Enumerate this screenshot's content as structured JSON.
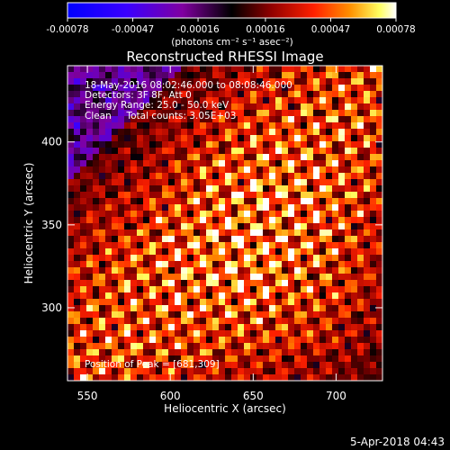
{
  "chart_data": {
    "type": "heatmap",
    "title": "Reconstructed RHESSI Image",
    "xlabel": "Heliocentric X (arcsec)",
    "ylabel": "Heliocentric Y (arcsec)",
    "xlim": [
      538,
      728
    ],
    "ylim": [
      256,
      446
    ],
    "x_ticks": [
      550,
      600,
      650,
      700
    ],
    "y_ticks": [
      300,
      350,
      400
    ],
    "colorbar": {
      "range": [
        -0.00078,
        0.00078
      ],
      "tick_values": [
        -0.00078,
        -0.00047,
        -0.00016,
        0.00016,
        0.00047,
        0.00078
      ],
      "tick_labels": [
        "-0.00078",
        "-0.00047",
        "-0.00016",
        "0.00016",
        "0.00047",
        "0.00078"
      ],
      "unit_label": "(photons cm⁻² s⁻¹ asec⁻²)"
    },
    "peak": {
      "x": 681,
      "y": 309
    },
    "annotations": {
      "time_range": "18-May-2016 08:02:46.000 to 08:08:46.000",
      "detectors": "Detectors: 3F 8F, Att 0",
      "energy_range": "Energy Range: 25.0 - 50.0 keV",
      "clean": "Clean     Total counts: 3.05E+03",
      "peak_text": "Position of Peak = [681,309]"
    },
    "footer_date": "5-Apr-2018 04:43",
    "colors": {
      "background": "#000000",
      "colormap": [
        "#0000ff",
        "#3a00ff",
        "#8000a0",
        "#000000",
        "#800000",
        "#ff2000",
        "#ff9000",
        "#ffff60",
        "#ffffff"
      ]
    }
  }
}
